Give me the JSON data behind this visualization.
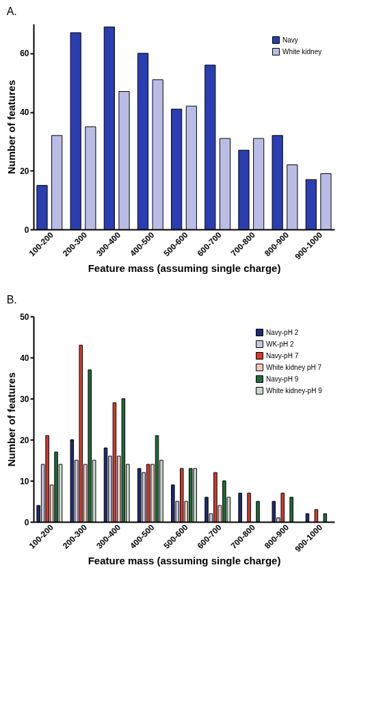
{
  "chart_data": [
    {
      "type": "bar",
      "title": "A.",
      "xlabel": "Feature mass (assuming single charge)",
      "ylabel": "Number of features",
      "categories": [
        "100-200",
        "200-300",
        "300-400",
        "400-500",
        "500-600",
        "600-700",
        "700-800",
        "800-900",
        "900-1000"
      ],
      "ylim": [
        0,
        70
      ],
      "yticks": [
        0,
        20,
        40,
        60
      ],
      "legend": "top right",
      "series": [
        {
          "name": "Navy",
          "color": "#2a3eb1",
          "values": [
            15,
            67,
            69,
            60,
            41,
            56,
            27,
            32,
            17
          ]
        },
        {
          "name": "White kidney",
          "color": "#b9bde6",
          "values": [
            32,
            35,
            47,
            51,
            42,
            31,
            31,
            22,
            19
          ]
        }
      ]
    },
    {
      "type": "bar",
      "title": "B.",
      "xlabel": "Feature mass (assuming single charge)",
      "ylabel": "Number of features",
      "categories": [
        "100-200",
        "200-300",
        "300-400",
        "400-500",
        "500-600",
        "600-700",
        "700-800",
        "800-900",
        "900-1000"
      ],
      "ylim": [
        0,
        50
      ],
      "yticks": [
        0,
        10,
        20,
        30,
        40,
        50
      ],
      "legend": "top right",
      "series": [
        {
          "name": "Navy-pH 2",
          "color": "#1f2a6e",
          "values": [
            4,
            20,
            18,
            13,
            9,
            6,
            7,
            5,
            2
          ]
        },
        {
          "name": "WK-pH 2",
          "color": "#c5c8e0",
          "values": [
            14,
            15,
            16,
            12,
            5,
            2,
            null,
            1,
            null
          ]
        },
        {
          "name": "Navy-pH 7",
          "color": "#d23a2e",
          "values": [
            21,
            43,
            29,
            14,
            13,
            12,
            7,
            7,
            3
          ]
        },
        {
          "name": "White kidney pH 7",
          "color": "#f0c8c0",
          "values": [
            9,
            14,
            16,
            14,
            5,
            4,
            null,
            null,
            null
          ]
        },
        {
          "name": "Navy-pH 9",
          "color": "#1e6b3a",
          "values": [
            17,
            37,
            30,
            21,
            13,
            10,
            5,
            6,
            2
          ]
        },
        {
          "name": "White kidney-pH 9",
          "color": "#c8d8cc",
          "values": [
            14,
            15,
            14,
            15,
            13,
            6,
            null,
            null,
            null
          ]
        }
      ]
    }
  ]
}
